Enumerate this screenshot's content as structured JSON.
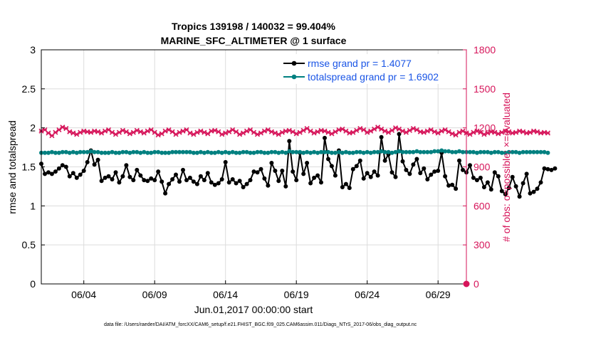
{
  "chart_data": {
    "type": "line",
    "title": "Tropics 139198 / 140032 = 99.404%",
    "subtitle": "MARINE_SFC_ALTIMETER @ 1 surface",
    "xlabel": "Jun.01,2017 00:00:00 start",
    "ylabel_left": "rmse and totalspread",
    "ylabel_right": "# of obs: o=possible; ×=evaluated",
    "footnote": "data file: /Users/raeder/DAI/ATM_forcXX/CAM6_setup/f.e21.FHIST_BGC.f09_025.CAM6assim.011/Diags_NTrS_2017-06/obs_diag_output.nc",
    "x_range_days": [
      0,
      30
    ],
    "ylim_left": [
      0,
      3
    ],
    "ylim_right": [
      0,
      1800
    ],
    "left_ticks": [
      "0",
      "0.5",
      "1",
      "1.5",
      "2",
      "2.5",
      "3"
    ],
    "right_ticks": [
      "0",
      "300",
      "600",
      "900",
      "1200",
      "1500",
      "1800"
    ],
    "x_tick_days": [
      3,
      8,
      13,
      18,
      23,
      28
    ],
    "x_tick_labels": [
      "06/04",
      "06/09",
      "06/14",
      "06/19",
      "06/24",
      "06/29"
    ],
    "colors": {
      "rmse": "#000000",
      "spread": "#008080",
      "obs": "#d6155a",
      "legend_text": "#1a55e6"
    },
    "series": [
      {
        "name": "rmse grand pr = 1.4077",
        "axis": "left",
        "marker": "circle",
        "start_day": 0,
        "step_days": 0.25,
        "values": [
          1.54,
          1.41,
          1.43,
          1.41,
          1.44,
          1.48,
          1.52,
          1.5,
          1.38,
          1.42,
          1.36,
          1.4,
          1.45,
          1.56,
          1.71,
          1.53,
          1.59,
          1.32,
          1.36,
          1.38,
          1.34,
          1.43,
          1.3,
          1.38,
          1.52,
          1.37,
          1.33,
          1.46,
          1.39,
          1.33,
          1.32,
          1.35,
          1.33,
          1.44,
          1.31,
          1.16,
          1.28,
          1.34,
          1.4,
          1.31,
          1.46,
          1.33,
          1.36,
          1.31,
          1.28,
          1.38,
          1.33,
          1.42,
          1.3,
          1.27,
          1.29,
          1.34,
          1.56,
          1.3,
          1.34,
          1.29,
          1.32,
          1.24,
          1.28,
          1.33,
          1.44,
          1.43,
          1.47,
          1.35,
          1.26,
          1.55,
          1.45,
          1.32,
          1.45,
          1.25,
          1.83,
          1.44,
          1.33,
          1.68,
          1.41,
          1.55,
          1.29,
          1.36,
          1.39,
          1.3,
          1.87,
          1.6,
          1.51,
          1.39,
          1.71,
          1.24,
          1.28,
          1.23,
          1.47,
          1.51,
          1.58,
          1.35,
          1.42,
          1.37,
          1.44,
          1.39,
          1.88,
          1.58,
          1.66,
          1.43,
          1.37,
          1.92,
          1.57,
          1.46,
          1.41,
          1.53,
          1.6,
          1.42,
          1.48,
          1.34,
          1.4,
          1.44,
          1.45,
          1.68,
          1.38,
          1.26,
          1.27,
          1.22,
          1.58,
          1.46,
          1.43,
          1.52,
          1.36,
          1.33,
          1.36,
          1.24,
          1.3,
          1.21,
          1.43,
          1.38,
          1.19,
          1.15,
          1.23,
          1.37,
          1.25,
          1.12,
          1.29,
          1.41,
          1.16,
          1.18,
          1.22,
          1.3,
          1.48,
          1.47,
          1.46,
          1.48
        ]
      },
      {
        "name": "totalspread grand pr = 1.6902",
        "axis": "left",
        "marker": "circle",
        "start_day": 0,
        "step_days": 0.25,
        "values": [
          1.68,
          1.68,
          1.68,
          1.69,
          1.68,
          1.68,
          1.69,
          1.69,
          1.68,
          1.69,
          1.68,
          1.69,
          1.69,
          1.69,
          1.7,
          1.69,
          1.69,
          1.68,
          1.68,
          1.68,
          1.69,
          1.68,
          1.68,
          1.69,
          1.69,
          1.68,
          1.69,
          1.69,
          1.68,
          1.69,
          1.68,
          1.68,
          1.69,
          1.69,
          1.68,
          1.68,
          1.68,
          1.69,
          1.69,
          1.69,
          1.69,
          1.69,
          1.69,
          1.68,
          1.68,
          1.69,
          1.68,
          1.69,
          1.68,
          1.68,
          1.69,
          1.68,
          1.69,
          1.68,
          1.69,
          1.68,
          1.68,
          1.69,
          1.69,
          1.68,
          1.68,
          1.69,
          1.69,
          1.68,
          1.68,
          1.69,
          1.69,
          1.68,
          1.69,
          1.68,
          1.7,
          1.69,
          1.69,
          1.69,
          1.68,
          1.69,
          1.68,
          1.69,
          1.68,
          1.69,
          1.69,
          1.69,
          1.68,
          1.68,
          1.69,
          1.68,
          1.69,
          1.68,
          1.68,
          1.69,
          1.69,
          1.68,
          1.69,
          1.68,
          1.69,
          1.69,
          1.7,
          1.69,
          1.69,
          1.68,
          1.69,
          1.7,
          1.69,
          1.69,
          1.69,
          1.69,
          1.7,
          1.69,
          1.69,
          1.69,
          1.69,
          1.7,
          1.7,
          1.71,
          1.7,
          1.7,
          1.69,
          1.69,
          1.7,
          1.69,
          1.69,
          1.69,
          1.69,
          1.68,
          1.69,
          1.69,
          1.69,
          1.68,
          1.69,
          1.69,
          1.68,
          1.68,
          1.69,
          1.69,
          1.69,
          1.68,
          1.69,
          1.69,
          1.69,
          1.69,
          1.69,
          1.69,
          1.69,
          1.68
        ]
      },
      {
        "name": "# of obs",
        "axis": "right",
        "marker": "cross",
        "start_day": 0,
        "step_days": 0.25,
        "values": [
          1175,
          1185,
          1160,
          1140,
          1165,
          1185,
          1205,
          1195,
          1170,
          1160,
          1150,
          1165,
          1175,
          1170,
          1165,
          1175,
          1170,
          1160,
          1175,
          1185,
          1165,
          1150,
          1165,
          1180,
          1170,
          1155,
          1165,
          1180,
          1170,
          1160,
          1175,
          1185,
          1165,
          1145,
          1155,
          1175,
          1185,
          1170,
          1150,
          1165,
          1175,
          1185,
          1160,
          1150,
          1165,
          1175,
          1165,
          1155,
          1175,
          1180,
          1170,
          1150,
          1160,
          1170,
          1185,
          1170,
          1150,
          1160,
          1175,
          1185,
          1165,
          1150,
          1160,
          1175,
          1185,
          1170,
          1160,
          1150,
          1165,
          1175,
          1180,
          1170,
          1155,
          1165,
          1180,
          1195,
          1175,
          1160,
          1170,
          1180,
          1175,
          1165,
          1155,
          1170,
          1185,
          1190,
          1175,
          1160,
          1165,
          1180,
          1195,
          1185,
          1165,
          1175,
          1190,
          1205,
          1190,
          1175,
          1165,
          1180,
          1200,
          1190,
          1175,
          1165,
          1180,
          1195,
          1185,
          1170,
          1165,
          1175,
          1185,
          1170,
          1160,
          1175,
          1185,
          1170,
          1155,
          1145,
          1165,
          1175,
          1160,
          1150,
          1165,
          1175,
          1165,
          1150,
          1160,
          1170,
          1165,
          1155,
          1165,
          1175,
          1170,
          1160,
          1165,
          1175,
          1170,
          1160,
          1165,
          1175,
          1170,
          1160,
          1165,
          1160
        ]
      }
    ],
    "zero_obs_marker": {
      "day": 30,
      "value": 0
    },
    "legend_position": "top-right"
  }
}
